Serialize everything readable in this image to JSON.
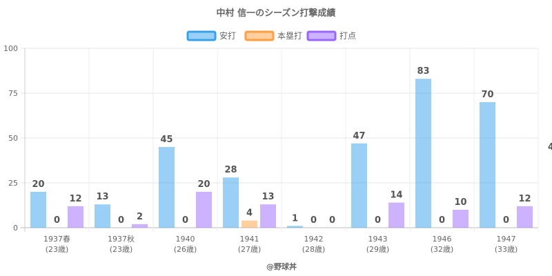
{
  "chart_data": {
    "type": "bar",
    "title": "中村 信一のシーズン打撃成績",
    "categories": [
      [
        "1937春",
        "(23歳)"
      ],
      [
        "1937秋",
        "(23歳)"
      ],
      [
        "1940",
        "(26歳)"
      ],
      [
        "1941",
        "(27歳)"
      ],
      [
        "1942",
        "(28歳)"
      ],
      [
        "1943",
        "(29歳)"
      ],
      [
        "1946",
        "(32歳)"
      ],
      [
        "1947",
        "(33歳)"
      ]
    ],
    "series": [
      {
        "name": "安打",
        "values": [
          20,
          13,
          45,
          28,
          1,
          47,
          83,
          70
        ],
        "color": "#36a2eb"
      },
      {
        "name": "本塁打",
        "values": [
          0,
          0,
          0,
          4,
          0,
          0,
          0,
          0
        ],
        "color": "#ff9f40"
      },
      {
        "name": "打点",
        "values": [
          12,
          2,
          20,
          13,
          0,
          14,
          10,
          12
        ],
        "color": "#9966ff"
      }
    ],
    "ylim": [
      0,
      100
    ],
    "yticks": [
      0,
      25,
      50,
      75,
      100
    ],
    "grid": true,
    "legend": "top",
    "overflow_label": "4"
  },
  "credit": "@野球丼"
}
